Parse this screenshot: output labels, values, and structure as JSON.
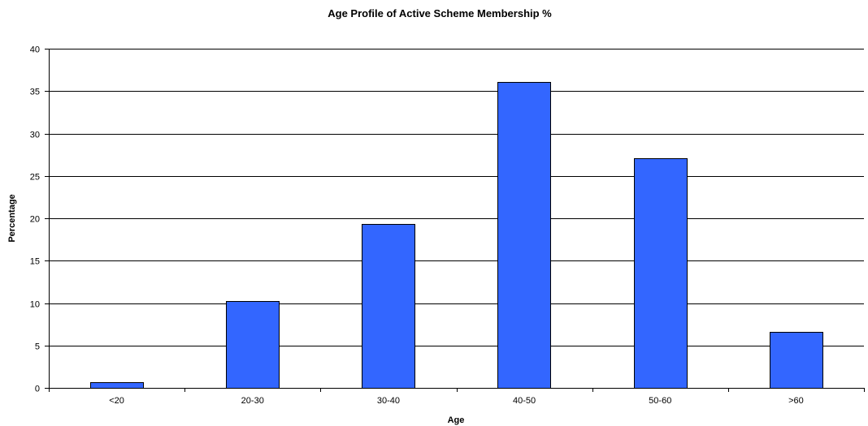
{
  "chart_data": {
    "type": "bar",
    "title": "Age Profile of Active Scheme Membership %",
    "xlabel": "Age",
    "ylabel": "Percentage",
    "categories": [
      "<20",
      "20-30",
      "30-40",
      "40-50",
      "50-60",
      ">60"
    ],
    "values": [
      0.7,
      10.2,
      19.3,
      36.1,
      27.1,
      6.6
    ],
    "ylim": [
      0,
      40
    ],
    "yticks": [
      0,
      5,
      10,
      15,
      20,
      25,
      30,
      35,
      40
    ],
    "grid": true,
    "legend": "none",
    "bar_color": "#3366FF"
  }
}
